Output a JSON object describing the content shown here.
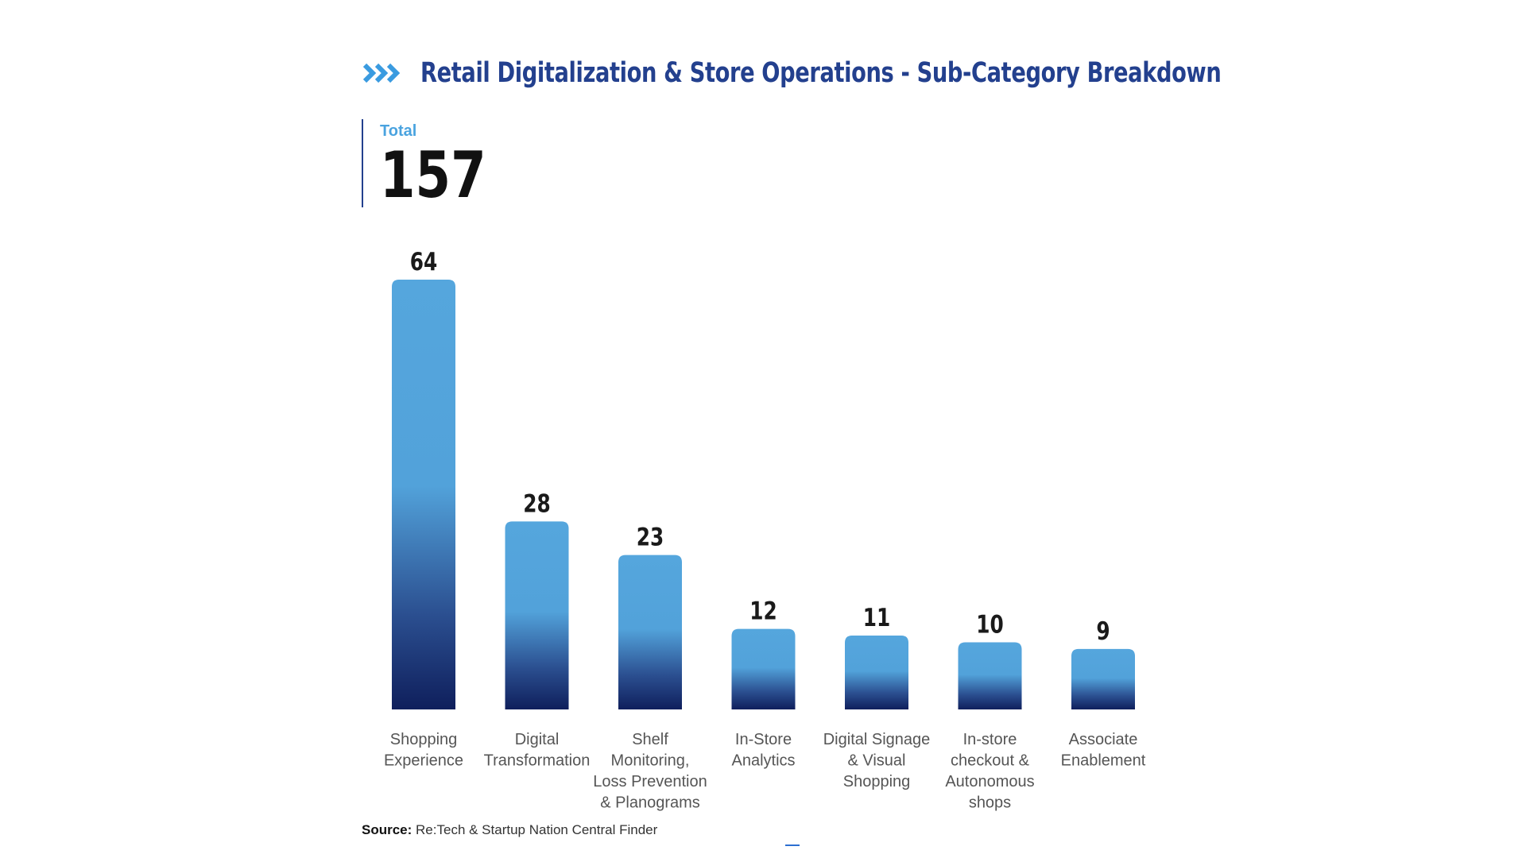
{
  "header": {
    "title": "Retail Digitalization & Store Operations - Sub-Category Breakdown"
  },
  "total": {
    "label": "Total",
    "value": "157"
  },
  "source": {
    "label": "Source:",
    "text": "Re:Tech & Startup Nation Central Finder"
  },
  "colors": {
    "title": "#23408e",
    "bar_top": "#55a6dd",
    "bar_bottom": "#0f1f5c",
    "total_label": "#4aa3df"
  },
  "chart_data": {
    "type": "bar",
    "title": "Retail Digitalization & Store Operations - Sub-Category Breakdown",
    "categories": [
      [
        "Shopping",
        "Experience"
      ],
      [
        "Digital",
        "Transformation"
      ],
      [
        "Shelf",
        "Monitoring,",
        "Loss Prevention",
        "& Planograms"
      ],
      [
        "In-Store",
        "Analytics"
      ],
      [
        "Digital Signage",
        "& Visual",
        "Shopping"
      ],
      [
        "In-store",
        "checkout &",
        "Autonomous",
        "shops"
      ],
      [
        "Associate",
        "Enablement"
      ]
    ],
    "values": [
      64,
      28,
      23,
      12,
      11,
      10,
      9
    ],
    "xlabel": "",
    "ylabel": "",
    "ylim": [
      0,
      64
    ],
    "grid": false,
    "legend": "none"
  }
}
